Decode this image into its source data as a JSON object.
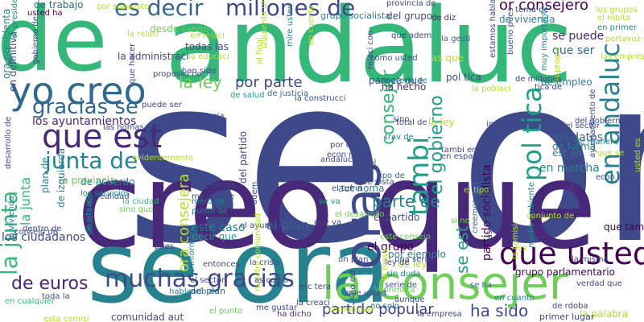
{
  "colors": {
    "background": "#ffffff",
    "palette": [
      "#440154",
      "#482878",
      "#3e4989",
      "#31688e",
      "#26828e",
      "#1f9e89",
      "#35b779",
      "#6ece58",
      "#b5de2b"
    ]
  },
  "words": [
    {
      "text": "se or",
      "color": "#3e4989"
    },
    {
      "text": "de",
      "color": "#35b779"
    },
    {
      "text": "andaluc",
      "color": "#35b779"
    },
    {
      "text": "creo que",
      "color": "#482878"
    },
    {
      "text": "se ora",
      "color": "#26828e"
    },
    {
      "text": "oras",
      "color": "#3e4989"
    },
    {
      "text": "yo creo",
      "color": "#31688e"
    },
    {
      "text": "la consejer",
      "color": "#6ece58"
    },
    {
      "text": "que est",
      "color": "#482878"
    },
    {
      "text": "muchas gracias",
      "color": "#3e4989"
    },
    {
      "text": "que usted",
      "color": "#440154"
    },
    {
      "text": "gracias se",
      "color": "#31688e"
    },
    {
      "text": "junta de",
      "color": "#26828e"
    },
    {
      "text": "la junta",
      "color": "#35b779"
    },
    {
      "text": "es decir",
      "color": "#31688e"
    },
    {
      "text": "millones de",
      "color": "#3e4989"
    },
    {
      "text": "tambi",
      "color": "#1f9e89"
    },
    {
      "text": "pol tica",
      "color": "#1f9e89"
    },
    {
      "text": "en andaluc",
      "color": "#26828e"
    },
    {
      "text": "partido popular",
      "color": "#3e4989"
    },
    {
      "text": "de euros",
      "color": "#482878"
    },
    {
      "text": "ha sido",
      "color": "#3e4989"
    },
    {
      "text": "el gobierno",
      "color": "#1f9e89"
    },
    {
      "text": "consejer",
      "color": "#35b779"
    },
    {
      "text": "la ley",
      "color": "#6ece58"
    },
    {
      "text": "por parte",
      "color": "#3e4989"
    },
    {
      "text": "or consejero",
      "color": "#440154"
    },
    {
      "text": "parte de",
      "color": "#26828e"
    },
    {
      "text": "ora consejera",
      "color": "#b5de2b"
    },
    {
      "text": "se est",
      "color": "#1f9e89"
    },
    {
      "text": "el plan",
      "color": "#31688e"
    },
    {
      "text": "los ayuntamientos",
      "color": "#482878"
    },
    {
      "text": "los ciudadanos",
      "color": "#3e4989"
    },
    {
      "text": "la provincia",
      "color": "#6ece58"
    },
    {
      "text": "el partido",
      "color": "#3e4989"
    },
    {
      "text": "la junta",
      "color": "#35b779"
    },
    {
      "text": "este caso",
      "color": "#26828e"
    },
    {
      "text": "decir que",
      "color": "#1f9e89"
    },
    {
      "text": "en marcha",
      "color": "#26828e"
    },
    {
      "text": "se va",
      "color": "#1f9e89"
    },
    {
      "text": "en materia",
      "color": "#3e4989"
    },
    {
      "text": "la administraci",
      "color": "#3e4989"
    },
    {
      "text": "todas las",
      "color": "#3e4989"
    },
    {
      "text": "el grupo",
      "color": "#440154"
    },
    {
      "text": "del grupo",
      "color": "#3e4989"
    },
    {
      "text": "de vivienda",
      "color": "#26828e"
    },
    {
      "text": "se puede",
      "color": "#482878"
    },
    {
      "text": "que ser",
      "color": "#31688e"
    },
    {
      "text": "de empleo",
      "color": "#26828e"
    },
    {
      "text": "los datos",
      "color": "#31688e"
    },
    {
      "text": "est en",
      "color": "#26828e"
    },
    {
      "text": "de forma",
      "color": "#26828e"
    },
    {
      "text": "que tambi",
      "color": "#440154"
    },
    {
      "text": "la ley",
      "color": "#b5de2b"
    },
    {
      "text": "de ley",
      "color": "#b5de2b"
    },
    {
      "text": "la palabra",
      "color": "#b5de2b"
    },
    {
      "text": "comunidad aut",
      "color": "#3e4989"
    },
    {
      "text": "primer lugar",
      "color": "#3e4989"
    },
    {
      "text": "del plan",
      "color": "#3e4989"
    },
    {
      "text": "la crisis",
      "color": "#3e4989"
    },
    {
      "text": "sin duda",
      "color": "#26828e"
    },
    {
      "text": "grupo parlamentario",
      "color": "#440154"
    },
    {
      "text": "partido socialista",
      "color": "#440154"
    },
    {
      "text": "ha hecho",
      "color": "#482878"
    },
    {
      "text": "parece que",
      "color": "#3e4989"
    },
    {
      "text": "pol tica",
      "color": "#3e4989"
    },
    {
      "text": "desde luego",
      "color": "#6ece58"
    },
    {
      "text": "la relaci",
      "color": "#b5de2b"
    },
    {
      "text": "en relaci",
      "color": "#b5de2b"
    },
    {
      "text": "el sector",
      "color": "#3e4989"
    },
    {
      "text": "mero de",
      "color": "#26828e"
    },
    {
      "text": "punto de",
      "color": "#26828e"
    },
    {
      "text": "plan de",
      "color": "#26828e"
    },
    {
      "text": "de trabajo",
      "color": "#31688e"
    },
    {
      "text": "usted ha",
      "color": "#440154"
    },
    {
      "text": "grupo socialista",
      "color": "#26828e"
    },
    {
      "text": "de diz",
      "color": "#482878"
    },
    {
      "text": "la gesti",
      "color": "#31688e"
    },
    {
      "text": "as que",
      "color": "#b5de2b"
    },
    {
      "text": "que adem",
      "color": "#3e4989"
    },
    {
      "text": "por ejemplo",
      "color": "#26828e"
    },
    {
      "text": "serie de",
      "color": "#3e4989"
    },
    {
      "text": "una serie",
      "color": "#3e4989"
    },
    {
      "text": "la primera",
      "color": "#6ece58"
    },
    {
      "text": "ley de",
      "color": "#3e4989"
    },
    {
      "text": "ha dicho",
      "color": "#482878"
    },
    {
      "text": "no solo",
      "color": "#31688e"
    },
    {
      "text": "comunidad",
      "color": "#b5de2b"
    },
    {
      "text": "se ha",
      "color": "#31688e"
    },
    {
      "text": "de salud",
      "color": "#1f9e89"
    },
    {
      "text": "del partido",
      "color": "#3e4989"
    },
    {
      "text": "de acuerdo",
      "color": "#26828e"
    },
    {
      "text": "del sector",
      "color": "#3e4989"
    },
    {
      "text": "del gobierno",
      "color": "#3e4989"
    },
    {
      "text": "de manera",
      "color": "#26828e"
    },
    {
      "text": "en cuanto",
      "color": "#26828e"
    },
    {
      "text": "de rdoba",
      "color": "#3e4989"
    },
    {
      "text": "de izquierda",
      "color": "#26828e"
    },
    {
      "text": "este consejo",
      "color": "#6ece58"
    },
    {
      "text": "econ mica",
      "color": "#3e4989"
    },
    {
      "text": "andaluc con",
      "color": "#3e4989"
    },
    {
      "text": "por qu",
      "color": "#3e4989"
    },
    {
      "text": "aut noma",
      "color": "#26828e"
    },
    {
      "text": "el tema",
      "color": "#3e4989"
    },
    {
      "text": "el desarrollo",
      "color": "#6ece58"
    },
    {
      "text": "tipo de",
      "color": "#31688e"
    },
    {
      "text": "de vista",
      "color": "#3e4989"
    },
    {
      "text": "la realidad",
      "color": "#3e4989"
    },
    {
      "text": "la ciudad",
      "color": "#35b779"
    },
    {
      "text": "sino que",
      "color": "#6ece58"
    },
    {
      "text": "me parece",
      "color": "#3e4989"
    },
    {
      "text": "los centros",
      "color": "#3e4989"
    },
    {
      "text": "el ayuntamiento",
      "color": "#3e4989"
    },
    {
      "text": "las personas",
      "color": "#3e4989"
    },
    {
      "text": "creemos que",
      "color": "#31688e"
    },
    {
      "text": "medio ambiente",
      "color": "#26828e"
    },
    {
      "text": "si no",
      "color": "#6ece58"
    },
    {
      "text": "que va",
      "color": "#3e4989"
    },
    {
      "text": "trav de",
      "color": "#26828e"
    },
    {
      "text": "en espa",
      "color": "#3e4989"
    },
    {
      "text": "tambi en",
      "color": "#3e4989"
    },
    {
      "text": "econ mico",
      "color": "#3e4989"
    },
    {
      "text": "los grupos",
      "color": "#b5de2b"
    },
    {
      "text": "el mbito",
      "color": "#b5de2b"
    },
    {
      "text": "en primer",
      "color": "#26828e"
    },
    {
      "text": "las empresas",
      "color": "#b5de2b"
    },
    {
      "text": "la propia",
      "color": "#b5de2b"
    },
    {
      "text": "muy importante",
      "color": "#26828e"
    },
    {
      "text": "bueno pues",
      "color": "#3e4989"
    },
    {
      "text": "estamos hablando",
      "color": "#3e4989"
    },
    {
      "text": "provincia de",
      "color": "#3e4989"
    },
    {
      "text": "al final",
      "color": "#b5de2b"
    },
    {
      "text": "de justicia",
      "color": "#31688e"
    },
    {
      "text": "la construcci",
      "color": "#3e4989"
    },
    {
      "text": "han sido",
      "color": "#3e4989"
    },
    {
      "text": "proposici no",
      "color": "#3e4989"
    },
    {
      "text": "la educaci",
      "color": "#b5de2b"
    },
    {
      "text": "en definitiva",
      "color": "#3e4989"
    },
    {
      "text": "ora presidenta",
      "color": "#26828e"
    },
    {
      "text": "or presidente",
      "color": "#26828e"
    },
    {
      "text": "gobierno de",
      "color": "#3e4989"
    },
    {
      "text": "por supuesto",
      "color": "#b5de2b"
    },
    {
      "text": "sino",
      "color": "#3e4989"
    },
    {
      "text": "incluso",
      "color": "#3e4989"
    },
    {
      "text": "total de",
      "color": "#3e4989"
    },
    {
      "text": "materia de",
      "color": "#26828e"
    },
    {
      "text": "la poblaci",
      "color": "#b5de2b"
    },
    {
      "text": "tica de",
      "color": "#3e4989"
    },
    {
      "text": "de millones",
      "color": "#3e4989"
    },
    {
      "text": "las nomas",
      "color": "#3e4989"
    },
    {
      "text": "desarrollo de",
      "color": "#3e4989"
    },
    {
      "text": "consejo de",
      "color": "#3e4989"
    },
    {
      "text": "dentro de",
      "color": "#3e4989"
    },
    {
      "text": "situaci de",
      "color": "#26828e"
    },
    {
      "text": "la situaci",
      "color": "#26828e"
    },
    {
      "text": "la vivienda",
      "color": "#26828e"
    },
    {
      "text": "en cualquier",
      "color": "#35b779"
    },
    {
      "text": "toda la",
      "color": "#3e4989"
    },
    {
      "text": "esta comisi",
      "color": "#b5de2b"
    },
    {
      "text": "nuestra comunidad",
      "color": "#b5de2b"
    },
    {
      "text": "la informaci",
      "color": "#26828e"
    },
    {
      "text": "hablando de",
      "color": "#26828e"
    },
    {
      "text": "pues",
      "color": "#3e4989"
    },
    {
      "text": "entonces",
      "color": "#3e4989"
    },
    {
      "text": "el punto",
      "color": "#6ece58"
    },
    {
      "text": "me gustar",
      "color": "#3e4989"
    },
    {
      "text": "as como",
      "color": "#3e4989"
    },
    {
      "text": "la misma",
      "color": "#3e4989"
    },
    {
      "text": "la mesa",
      "color": "#b5de2b"
    },
    {
      "text": "verdad que",
      "color": "#3e4989"
    },
    {
      "text": "la comisi",
      "color": "#b5de2b"
    },
    {
      "text": "etc tera",
      "color": "#3e4989"
    },
    {
      "text": "un plan",
      "color": "#3e4989"
    },
    {
      "text": "el tipo",
      "color": "#b5de2b"
    },
    {
      "text": "aunque",
      "color": "#3e4989"
    },
    {
      "text": "la pol",
      "color": "#3e4989"
    },
    {
      "text": "adem",
      "color": "#3e4989"
    },
    {
      "text": "evidentemente",
      "color": "#b5de2b"
    },
    {
      "text": "la creaci",
      "color": "#3e4989"
    },
    {
      "text": "que usted",
      "color": "#3e4989"
    },
    {
      "text": "usted es",
      "color": "#b5de2b"
    },
    {
      "text": "que se",
      "color": "#b5de2b"
    },
    {
      "text": "izquierda unida",
      "color": "#b5de2b"
    },
    {
      "text": "mire usted",
      "color": "#26828e"
    },
    {
      "text": "en cuenta",
      "color": "#b5de2b"
    },
    {
      "text": "comunidades aut",
      "color": "#3e4989"
    },
    {
      "text": "portavoz del",
      "color": "#b5de2b"
    },
    {
      "text": "ayuntamiento de",
      "color": "#3e4989"
    },
    {
      "text": "conjunto de",
      "color": "#b5de2b"
    },
    {
      "text": "los servicios",
      "color": "#26828e"
    },
    {
      "text": "que hacer",
      "color": "#3e4989"
    },
    {
      "text": "relaci con",
      "color": "#3e4989"
    },
    {
      "text": "como usted",
      "color": "#3e4989"
    },
    {
      "text": "puede ser",
      "color": "#3e4989"
    },
    {
      "text": "tema de",
      "color": "#3e4989"
    },
    {
      "text": "las",
      "color": "#b5de2b"
    },
    {
      "text": "no est",
      "color": "#3e4989"
    },
    {
      "text": "la empresa",
      "color": "#3e4989"
    },
    {
      "text": "usted",
      "color": "#b5de2b"
    },
    {
      "text": "en la",
      "color": "#3e4989"
    },
    {
      "text": "verdad",
      "color": "#3e4989"
    }
  ]
}
